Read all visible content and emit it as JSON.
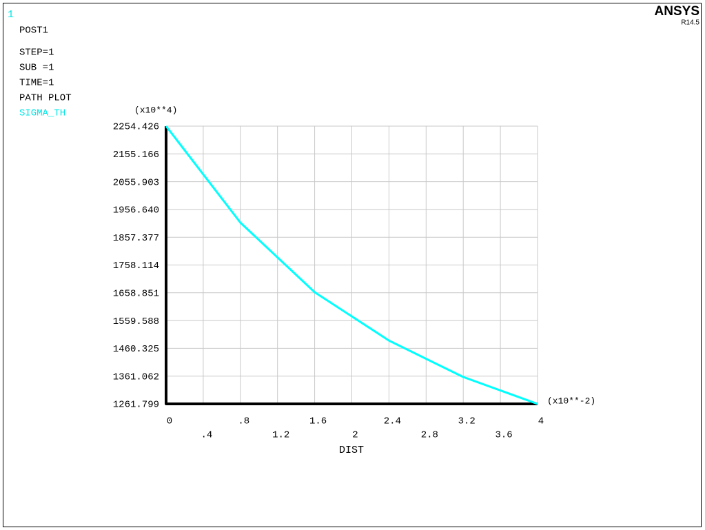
{
  "window_number": "1",
  "product": "ANSYS",
  "version": "R14.5",
  "info_lines": [
    "POST1",
    "STEP=1",
    "SUB =1",
    "TIME=1",
    "PATH PLOT"
  ],
  "chart_data": {
    "type": "line",
    "x": [
      0,
      0.8,
      1.6,
      2.4,
      3.2,
      4
    ],
    "series": [
      {
        "name": "SIGMA_TH",
        "color": "#00ffff",
        "values": [
          2254.426,
          1909.6,
          1660.8,
          1488,
          1357.8,
          1261.799
        ]
      }
    ],
    "xlabel": "DIST",
    "x_multiplier": "(x10**-2)",
    "y_multiplier": "(x10**4)",
    "xlim": [
      0,
      4
    ],
    "ylim": [
      1261.799,
      2254.426
    ],
    "xticks": [
      0,
      {
        "value": 0.4,
        "label": ".4"
      },
      {
        "value": 0.8,
        "label": ".8"
      },
      1.2,
      1.6,
      2,
      2.4,
      2.8,
      3.2,
      3.6,
      4
    ],
    "yticks": [
      1261.799,
      1361.062,
      1460.325,
      1559.588,
      1658.851,
      1758.114,
      1857.377,
      {
        "value": 1956.64,
        "label": "1956.640"
      },
      2055.903,
      2155.166,
      2254.426
    ],
    "grid": true
  }
}
